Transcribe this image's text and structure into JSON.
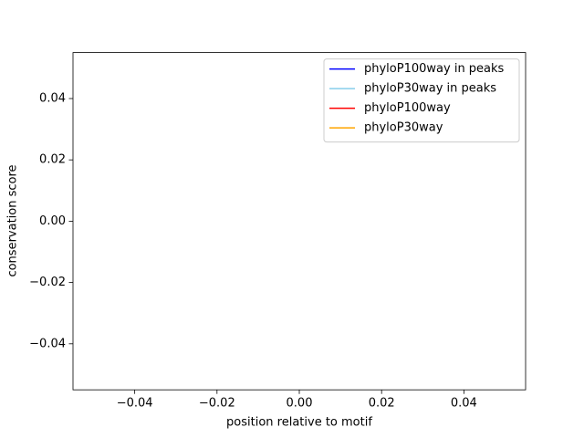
{
  "chart_data": {
    "type": "line",
    "xlabel": "position relative to motif",
    "ylabel": "conservation score",
    "x": [],
    "series": [
      {
        "name": "phyloP100way in peaks",
        "color": "#0000ff",
        "values": []
      },
      {
        "name": "phyloP30way in peaks",
        "color": "#87ceeb",
        "values": []
      },
      {
        "name": "phyloP100way",
        "color": "#ff0000",
        "values": []
      },
      {
        "name": "phyloP30way",
        "color": "#ffa500",
        "values": []
      }
    ],
    "xlim": [
      -0.055,
      0.055
    ],
    "ylim": [
      -0.055,
      0.055
    ],
    "xticks": [
      {
        "value": -0.04,
        "label": "−0.04"
      },
      {
        "value": -0.02,
        "label": "−0.02"
      },
      {
        "value": 0,
        "label": "0.00"
      },
      0.02,
      0.04
    ],
    "yticks": [
      {
        "value": -0.04,
        "label": "−0.04"
      },
      {
        "value": -0.02,
        "label": "−0.02"
      },
      {
        "value": 0,
        "label": "0.00"
      },
      0.02,
      0.04
    ],
    "legend": "upper right"
  }
}
